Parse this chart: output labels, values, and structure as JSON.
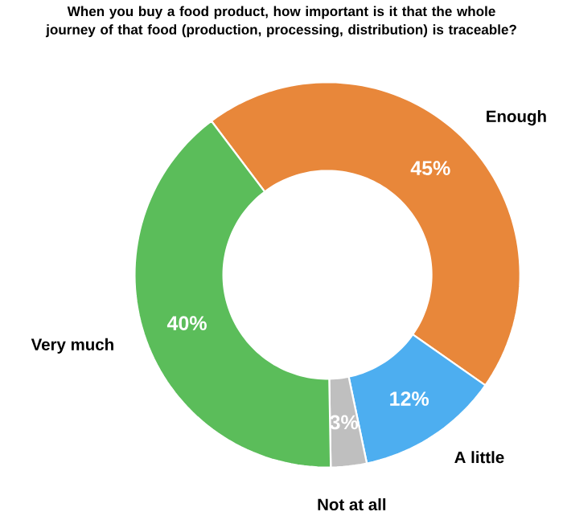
{
  "chart_data": {
    "type": "donut",
    "title": "When you buy a food product, how important is it that the whole journey of that food (production, processing, distribution) is traceable?",
    "categories": [
      "Enough",
      "A little",
      "Not at all",
      "Very much"
    ],
    "values": [
      45,
      12,
      3,
      40
    ],
    "value_labels": [
      "45%",
      "12%",
      "3%",
      "40%"
    ],
    "colors": [
      "#e8873a",
      "#4daef0",
      "#bfbfbf",
      "#5bbd5a"
    ]
  }
}
